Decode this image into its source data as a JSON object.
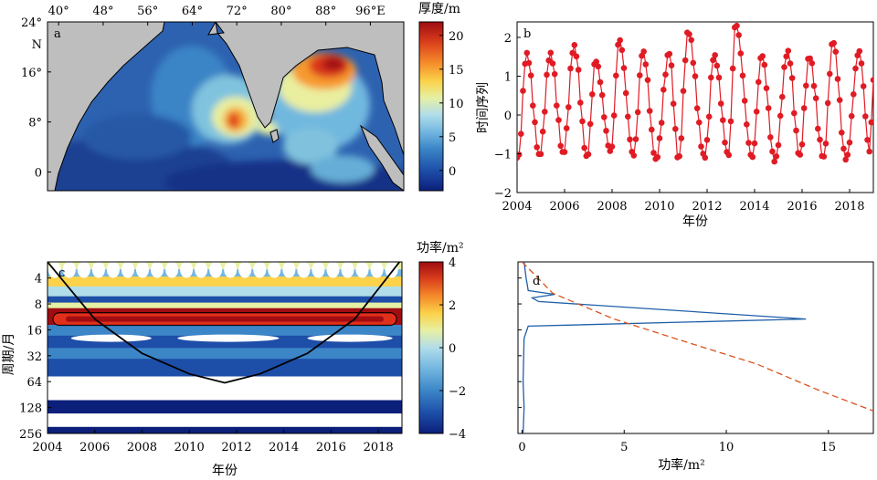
{
  "chart_data": [
    {
      "type": "heatmap",
      "panel_label": "a",
      "top_ticks": [
        "40°",
        "48°",
        "56°",
        "64°",
        "72°",
        "80°",
        "88°",
        "96°E"
      ],
      "lon_values": [
        40,
        48,
        56,
        64,
        72,
        80,
        88,
        96
      ],
      "xlim": [
        38,
        102
      ],
      "left_ticks": [
        "24°",
        "N",
        "16°",
        "8°",
        "0"
      ],
      "lat_values": [
        24,
        20.5,
        16,
        8,
        0
      ],
      "ylim": [
        -3,
        24
      ],
      "colorbar": {
        "title": "厚度/m",
        "ticks": [
          "20",
          "15",
          "10",
          "5",
          "0"
        ],
        "tick_values": [
          20,
          15,
          10,
          5,
          0
        ],
        "range": [
          -3,
          22
        ],
        "colors": [
          "#0c1f7a",
          "#1d4ea8",
          "#3c86c8",
          "#73b7e0",
          "#b1ddea",
          "#e6f0a4",
          "#fbd249",
          "#f58a2a",
          "#da3f1c",
          "#9f0c12"
        ]
      },
      "land_color": "#bebebe"
    },
    {
      "type": "line",
      "panel_label": "b",
      "xlabel": "年份",
      "ylabel": "时间序列",
      "x_ticks": [
        "2004",
        "2006",
        "2008",
        "2010",
        "2012",
        "2014",
        "2016",
        "2018"
      ],
      "x_tick_values": [
        2004,
        2006,
        2008,
        2010,
        2012,
        2014,
        2016,
        2018
      ],
      "xlim": [
        2004,
        2019
      ],
      "y_ticks": [
        "2",
        "1",
        "0",
        "−1",
        "−2"
      ],
      "y_tick_values": [
        2,
        1,
        0,
        -1,
        -2
      ],
      "ylim": [
        -2,
        2.4
      ],
      "color": "#e01b24",
      "peaks": [
        [
          2004.4,
          1.6
        ],
        [
          2005.4,
          1.6
        ],
        [
          2006.4,
          1.8
        ],
        [
          2007.3,
          1.4
        ],
        [
          2008.3,
          1.95
        ],
        [
          2009.3,
          1.65
        ],
        [
          2010.4,
          1.6
        ],
        [
          2011.2,
          2.15
        ],
        [
          2012.3,
          1.55
        ],
        [
          2013.2,
          2.35
        ],
        [
          2014.3,
          1.55
        ],
        [
          2015.4,
          1.65
        ],
        [
          2016.3,
          1.5
        ],
        [
          2017.3,
          1.9
        ],
        [
          2018.4,
          1.65
        ]
      ],
      "troughs": [
        [
          2004.05,
          -1.1
        ],
        [
          2004.95,
          -1.05
        ],
        [
          2005.95,
          -1.0
        ],
        [
          2006.95,
          -1.1
        ],
        [
          2007.95,
          -0.95
        ],
        [
          2008.9,
          -1.05
        ],
        [
          2009.85,
          -1.15
        ],
        [
          2010.8,
          -1.15
        ],
        [
          2011.9,
          -1.1
        ],
        [
          2012.9,
          -1.05
        ],
        [
          2013.9,
          -1.1
        ],
        [
          2014.85,
          -1.2
        ],
        [
          2015.9,
          -1.05
        ],
        [
          2016.9,
          -1.1
        ],
        [
          2017.85,
          -1.15
        ],
        [
          2018.85,
          -0.95
        ]
      ],
      "end_point": [
        2019.0,
        0.9
      ]
    },
    {
      "type": "heatmap",
      "panel_label": "c",
      "xlabel": "年份",
      "ylabel": "周期/月",
      "x_ticks": [
        "2004",
        "2006",
        "2008",
        "2010",
        "2012",
        "2014",
        "2016",
        "2018"
      ],
      "x_tick_values": [
        2004,
        2006,
        2008,
        2010,
        2012,
        2014,
        2016,
        2018
      ],
      "xlim": [
        2004,
        2019
      ],
      "y_ticks": [
        "4",
        "8",
        "16",
        "32",
        "64",
        "128",
        "256"
      ],
      "y_tick_values": [
        4,
        8,
        16,
        32,
        64,
        128,
        256
      ],
      "ylim_period": [
        2.6,
        256
      ],
      "colorbar": {
        "title": "功率/m²",
        "ticks": [
          "4",
          "2",
          "0",
          "−2",
          "−4"
        ],
        "tick_values": [
          4,
          2,
          0,
          -2,
          -4
        ],
        "range": [
          -4,
          4
        ]
      },
      "bands": [
        {
          "period": 3.0,
          "level": 0.5
        },
        {
          "period": 3.7,
          "level": -1.0
        },
        {
          "period": 4.8,
          "level": 1.0
        },
        {
          "period": 6.0,
          "level": -0.5
        },
        {
          "period": 7.6,
          "level": -3.0
        },
        {
          "period": 9.0,
          "level": 0.5
        },
        {
          "period": 12.0,
          "level": 3.6
        },
        {
          "period": 17.0,
          "level": -2.0
        },
        {
          "period": 23.0,
          "level": -3.2
        },
        {
          "period": 32.0,
          "level": -2.6
        },
        {
          "period": 44.0,
          "level": -3.4
        },
        {
          "period": 128.0,
          "level": -3.6
        },
        {
          "period": 245.0,
          "level": -3.6
        }
      ],
      "coi": [
        [
          2004.0,
          2.6
        ],
        [
          2006.0,
          12.0
        ],
        [
          2008.0,
          30.0
        ],
        [
          2010.0,
          52.0
        ],
        [
          2011.5,
          66.0
        ],
        [
          2013.0,
          52.0
        ],
        [
          2015.0,
          30.0
        ],
        [
          2017.0,
          12.0
        ],
        [
          2018.9,
          2.6
        ]
      ]
    },
    {
      "type": "line",
      "panel_label": "d",
      "xlabel": "功率/m²",
      "x_ticks": [
        "0",
        "5",
        "10",
        "15"
      ],
      "x_tick_values": [
        0,
        5,
        10,
        15
      ],
      "xlim": [
        -0.2,
        17.2
      ],
      "y_period_range": [
        2.6,
        256
      ],
      "series": [
        {
          "color": "#1f5fa8",
          "points": [
            [
              0.1,
              2.6
            ],
            [
              0.2,
              4.0
            ],
            [
              0.3,
              5.6
            ],
            [
              1.6,
              6.2
            ],
            [
              0.5,
              6.8
            ],
            [
              0.8,
              7.5
            ],
            [
              13.9,
              12.0
            ],
            [
              0.3,
              14.5
            ],
            [
              0.1,
              20.0
            ],
            [
              0.05,
              64.0
            ],
            [
              0.1,
              128.0
            ],
            [
              0.05,
              256.0
            ]
          ]
        },
        {
          "color": "#d9541e",
          "dashed": true,
          "points": [
            [
              0.0,
              2.6
            ],
            [
              1.5,
              6.0
            ],
            [
              4.5,
              12.0
            ],
            [
              8.0,
              22.0
            ],
            [
              11.5,
              40.0
            ],
            [
              14.5,
              80.0
            ],
            [
              17.2,
              140.0
            ]
          ]
        }
      ]
    }
  ]
}
